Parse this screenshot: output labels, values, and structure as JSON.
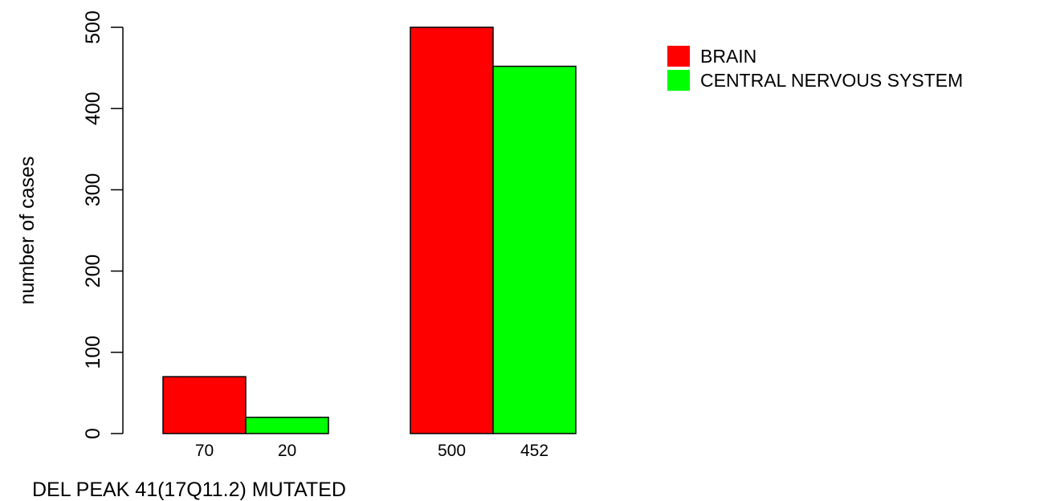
{
  "chart_data": {
    "type": "bar",
    "title": "",
    "xlabel": "DEL PEAK 41(17Q11.2) MUTATED",
    "ylabel": "number of cases",
    "ylim": [
      0,
      500
    ],
    "yticks": [
      0,
      100,
      200,
      300,
      400,
      500
    ],
    "grid": false,
    "legend_position": "top-right",
    "groups": [
      "",
      ""
    ],
    "series": [
      {
        "name": "BRAIN",
        "color": "#ff0000",
        "values": [
          70,
          500
        ]
      },
      {
        "name": "CENTRAL NERVOUS SYSTEM",
        "color": "#00ff00",
        "values": [
          20,
          452
        ]
      }
    ],
    "bar_value_labels": [
      [
        "70",
        "20"
      ],
      [
        "500",
        "452"
      ]
    ]
  }
}
